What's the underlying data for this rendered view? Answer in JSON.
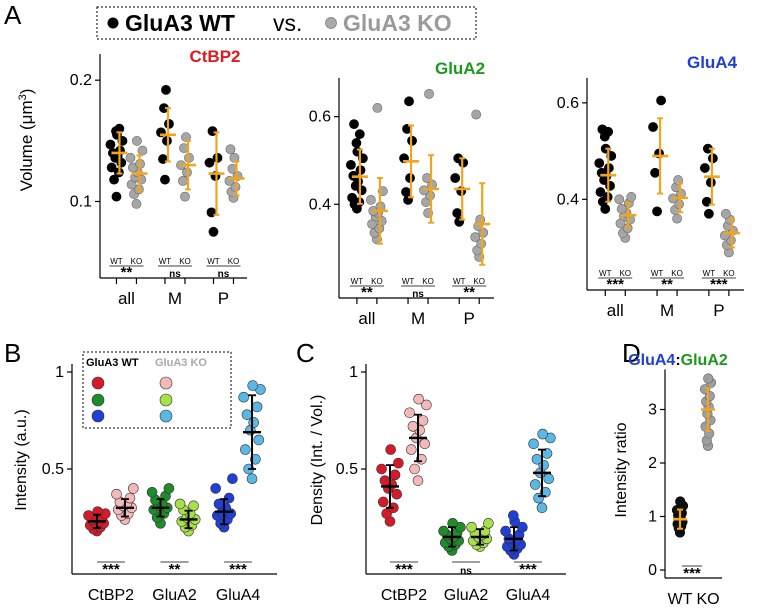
{
  "colors": {
    "wt": "#000000",
    "ko": "#9a9a9a",
    "mean": "#f0a51e",
    "ctbp2_title": "#e01b1b",
    "glua2_title": "#1a9a1a",
    "glua4_title": "#1f3fd6",
    "ratio_glua4": "#1f3fd6",
    "ratio_glua2": "#1a9a1a",
    "ctbp2_wt": "#d61a2a",
    "ctbp2_ko": "#f4b8b8",
    "glua2_wt": "#1e8c2a",
    "glua2_ko": "#a8e04a",
    "glua4_wt": "#1f3fd6",
    "glua4_ko": "#5ab8e6"
  },
  "legend_top": {
    "wt": "GluA3 WT",
    "vs": "vs.",
    "ko": "GluA3 KO"
  },
  "panel_labels": {
    "A": "A",
    "B": "B",
    "C": "C",
    "D": "D"
  },
  "panelA": {
    "ylabel": "Volume (μm",
    "ylabel_sup": "3",
    "ylabel_close": ")",
    "wt_label": "WT",
    "ko_label": "KO",
    "groups": [
      "all",
      "M",
      "P"
    ],
    "plots": [
      {
        "title": "CtBP2",
        "title_color_key": "ctbp2_title",
        "yticks": [
          "0.1",
          "0.2"
        ],
        "sig": [
          "**",
          "ns",
          "ns"
        ],
        "series": [
          {
            "group": "all",
            "geno": "WT",
            "mean": 0.14,
            "sd": 0.017,
            "points": [
              0.104,
              0.118,
              0.124,
              0.128,
              0.132,
              0.136,
              0.137,
              0.14,
              0.142,
              0.147,
              0.15,
              0.155,
              0.158,
              0.16
            ]
          },
          {
            "group": "all",
            "geno": "KO",
            "mean": 0.123,
            "sd": 0.015,
            "points": [
              0.098,
              0.106,
              0.11,
              0.114,
              0.118,
              0.12,
              0.124,
              0.128,
              0.131,
              0.136,
              0.142,
              0.15
            ]
          },
          {
            "group": "M",
            "geno": "WT",
            "mean": 0.155,
            "sd": 0.022,
            "points": [
              0.118,
              0.135,
              0.15,
              0.157,
              0.164,
              0.177,
              0.192
            ]
          },
          {
            "group": "M",
            "geno": "KO",
            "mean": 0.13,
            "sd": 0.02,
            "points": [
              0.104,
              0.117,
              0.124,
              0.13,
              0.136,
              0.144,
              0.153
            ]
          },
          {
            "group": "P",
            "geno": "WT",
            "mean": 0.123,
            "sd": 0.034,
            "points": [
              0.075,
              0.091,
              0.121,
              0.132,
              0.136,
              0.158
            ]
          },
          {
            "group": "P",
            "geno": "KO",
            "mean": 0.119,
            "sd": 0.014,
            "points": [
              0.103,
              0.108,
              0.112,
              0.117,
              0.121,
              0.127,
              0.136,
              0.143
            ]
          }
        ]
      },
      {
        "title": "GluA2",
        "title_color_key": "glua2_title",
        "yticks": [
          "0.4",
          "0.6"
        ],
        "sig": [
          "**",
          "ns",
          "**"
        ],
        "series": [
          {
            "group": "all",
            "geno": "WT",
            "mean": 0.463,
            "sd": 0.062,
            "points": [
              0.39,
              0.4,
              0.405,
              0.415,
              0.432,
              0.442,
              0.452,
              0.465,
              0.478,
              0.49,
              0.505,
              0.52,
              0.54,
              0.56,
              0.583
            ]
          },
          {
            "group": "all",
            "geno": "KO",
            "mean": 0.385,
            "sd": 0.075,
            "points": [
              0.32,
              0.335,
              0.345,
              0.355,
              0.362,
              0.372,
              0.38,
              0.385,
              0.395,
              0.41,
              0.43,
              0.62
            ]
          },
          {
            "group": "M",
            "geno": "WT",
            "mean": 0.498,
            "sd": 0.082,
            "points": [
              0.41,
              0.428,
              0.46,
              0.505,
              0.545,
              0.572,
              0.635
            ]
          },
          {
            "group": "M",
            "geno": "KO",
            "mean": 0.435,
            "sd": 0.077,
            "points": [
              0.38,
              0.405,
              0.42,
              0.432,
              0.445,
              0.46,
              0.652
            ]
          },
          {
            "group": "P",
            "geno": "WT",
            "mean": 0.435,
            "sd": 0.07,
            "points": [
              0.36,
              0.38,
              0.43,
              0.46,
              0.495,
              0.505
            ]
          },
          {
            "group": "P",
            "geno": "KO",
            "mean": 0.355,
            "sd": 0.093,
            "points": [
              0.28,
              0.295,
              0.31,
              0.325,
              0.335,
              0.35,
              0.365,
              0.605
            ]
          }
        ]
      },
      {
        "title": "GluA4",
        "title_color_key": "glua4_title",
        "yticks": [
          "0.4",
          "0.6"
        ],
        "sig": [
          "***",
          "**",
          "***"
        ],
        "series": [
          {
            "group": "all",
            "geno": "WT",
            "mean": 0.45,
            "sd": 0.055,
            "points": [
              0.38,
              0.395,
              0.405,
              0.415,
              0.428,
              0.44,
              0.448,
              0.455,
              0.465,
              0.475,
              0.49,
              0.505,
              0.53,
              0.54,
              0.545
            ]
          },
          {
            "group": "all",
            "geno": "KO",
            "mean": 0.367,
            "sd": 0.026,
            "points": [
              0.32,
              0.33,
              0.34,
              0.35,
              0.358,
              0.365,
              0.372,
              0.38,
              0.392,
              0.4,
              0.405
            ]
          },
          {
            "group": "M",
            "geno": "WT",
            "mean": 0.49,
            "sd": 0.078,
            "points": [
              0.375,
              0.455,
              0.495,
              0.55,
              0.605
            ]
          },
          {
            "group": "M",
            "geno": "KO",
            "mean": 0.403,
            "sd": 0.03,
            "points": [
              0.36,
              0.378,
              0.39,
              0.402,
              0.412,
              0.425,
              0.44
            ]
          },
          {
            "group": "P",
            "geno": "WT",
            "mean": 0.447,
            "sd": 0.058,
            "points": [
              0.37,
              0.395,
              0.435,
              0.465,
              0.485,
              0.505
            ]
          },
          {
            "group": "P",
            "geno": "KO",
            "mean": 0.33,
            "sd": 0.03,
            "points": [
              0.29,
              0.305,
              0.315,
              0.325,
              0.335,
              0.345,
              0.358,
              0.37
            ]
          }
        ]
      }
    ]
  },
  "panelB": {
    "ylabel": "Intensity (a.u.)",
    "yticks": [
      "0.5",
      "1"
    ],
    "categories": [
      "CtBP2",
      "GluA2",
      "GluA4"
    ],
    "legend": {
      "wt": "GluA3 WT",
      "ko": "GluA3 KO"
    },
    "sig": [
      "***",
      "**",
      "***"
    ],
    "series": [
      {
        "cat": "CtBP2",
        "geno": "WT",
        "color_key": "ctbp2_wt",
        "mean": 0.23,
        "sd": 0.035,
        "points": [
          0.18,
          0.19,
          0.2,
          0.21,
          0.22,
          0.22,
          0.23,
          0.24,
          0.25,
          0.26,
          0.27,
          0.28
        ]
      },
      {
        "cat": "CtBP2",
        "geno": "KO",
        "color_key": "ctbp2_ko",
        "mean": 0.3,
        "sd": 0.045,
        "points": [
          0.24,
          0.26,
          0.27,
          0.29,
          0.3,
          0.31,
          0.32,
          0.33,
          0.35,
          0.37,
          0.4
        ]
      },
      {
        "cat": "GluA2",
        "geno": "WT",
        "color_key": "glua2_wt",
        "mean": 0.3,
        "sd": 0.045,
        "points": [
          0.22,
          0.25,
          0.27,
          0.29,
          0.3,
          0.31,
          0.32,
          0.34,
          0.36,
          0.38,
          0.4
        ]
      },
      {
        "cat": "GluA2",
        "geno": "KO",
        "color_key": "glua2_ko",
        "mean": 0.24,
        "sd": 0.045,
        "points": [
          0.18,
          0.2,
          0.21,
          0.23,
          0.24,
          0.25,
          0.27,
          0.29,
          0.31,
          0.32
        ]
      },
      {
        "cat": "GluA4",
        "geno": "WT",
        "color_key": "glua4_wt",
        "mean": 0.28,
        "sd": 0.065,
        "points": [
          0.2,
          0.22,
          0.24,
          0.26,
          0.27,
          0.28,
          0.3,
          0.32,
          0.35,
          0.4,
          0.45
        ]
      },
      {
        "cat": "GluA4",
        "geno": "KO",
        "color_key": "glua4_ko",
        "mean": 0.69,
        "sd": 0.19,
        "points": [
          0.45,
          0.5,
          0.55,
          0.6,
          0.65,
          0.7,
          0.74,
          0.78,
          0.82,
          0.87,
          0.91,
          0.93
        ]
      }
    ]
  },
  "panelC": {
    "ylabel": "Density (Int. / Vol.)",
    "yticks": [
      "0.5",
      "1"
    ],
    "categories": [
      "CtBP2",
      "GluA2",
      "GluA4"
    ],
    "sig": [
      "***",
      "ns",
      "***"
    ],
    "series": [
      {
        "cat": "CtBP2",
        "geno": "WT",
        "color_key": "ctbp2_wt",
        "mean": 0.41,
        "sd": 0.11,
        "points": [
          0.23,
          0.27,
          0.3,
          0.33,
          0.37,
          0.4,
          0.42,
          0.44,
          0.47,
          0.5,
          0.53,
          0.6
        ]
      },
      {
        "cat": "CtBP2",
        "geno": "KO",
        "color_key": "ctbp2_ko",
        "mean": 0.66,
        "sd": 0.12,
        "points": [
          0.44,
          0.5,
          0.55,
          0.6,
          0.63,
          0.66,
          0.7,
          0.72,
          0.75,
          0.79,
          0.83,
          0.86
        ]
      },
      {
        "cat": "GluA2",
        "geno": "WT",
        "color_key": "glua2_wt",
        "mean": 0.15,
        "sd": 0.05,
        "points": [
          0.08,
          0.1,
          0.11,
          0.12,
          0.13,
          0.14,
          0.15,
          0.16,
          0.17,
          0.18,
          0.2,
          0.22
        ]
      },
      {
        "cat": "GluA2",
        "geno": "KO",
        "color_key": "glua2_ko",
        "mean": 0.15,
        "sd": 0.04,
        "points": [
          0.1,
          0.11,
          0.12,
          0.13,
          0.14,
          0.15,
          0.16,
          0.17,
          0.18,
          0.2,
          0.22
        ]
      },
      {
        "cat": "GluA4",
        "geno": "WT",
        "color_key": "glua4_wt",
        "mean": 0.14,
        "sd": 0.06,
        "points": [
          0.06,
          0.08,
          0.09,
          0.1,
          0.11,
          0.12,
          0.13,
          0.14,
          0.16,
          0.18,
          0.2,
          0.23,
          0.26
        ]
      },
      {
        "cat": "GluA4",
        "geno": "KO",
        "color_key": "glua4_ko",
        "mean": 0.48,
        "sd": 0.12,
        "points": [
          0.3,
          0.35,
          0.38,
          0.42,
          0.45,
          0.48,
          0.52,
          0.55,
          0.58,
          0.63,
          0.66,
          0.68
        ]
      }
    ]
  },
  "panelD": {
    "ylabel": "Intensity ratio",
    "title_a": "GluA4",
    "title_sep": ":",
    "title_b": "GluA2",
    "yticks": [
      "0",
      "1",
      "2",
      "3"
    ],
    "categories": [
      "WT",
      "KO"
    ],
    "sig": "***",
    "series": [
      {
        "cat": "WT",
        "geno": "WT",
        "color_key": "wt",
        "mean": 0.95,
        "sd": 0.18,
        "points": [
          0.7,
          0.78,
          0.82,
          0.86,
          0.9,
          0.94,
          0.98,
          1.02,
          1.06,
          1.12,
          1.2,
          1.28
        ]
      },
      {
        "cat": "KO",
        "geno": "KO",
        "color_key": "ko",
        "mean": 3.0,
        "sd": 0.4,
        "points": [
          2.32,
          2.42,
          2.55,
          2.68,
          2.8,
          2.92,
          3.05,
          3.15,
          3.25,
          3.38,
          3.5,
          3.58
        ]
      }
    ]
  },
  "chart_data": [
    {
      "type": "scatter",
      "title": "CtBP2",
      "ylabel": "Volume (μm3)",
      "categories": [
        "all",
        "M",
        "P"
      ],
      "ylim": [
        0.06,
        0.21
      ],
      "series_ref": "panelA.plots.0.series"
    },
    {
      "type": "scatter",
      "title": "GluA2",
      "ylabel": "Volume (μm3)",
      "categories": [
        "all",
        "M",
        "P"
      ],
      "ylim": [
        0.25,
        0.66
      ],
      "series_ref": "panelA.plots.1.series"
    },
    {
      "type": "scatter",
      "title": "GluA4",
      "ylabel": "Volume (μm3)",
      "categories": [
        "all",
        "M",
        "P"
      ],
      "ylim": [
        0.27,
        0.63
      ],
      "series_ref": "panelA.plots.2.series"
    },
    {
      "type": "scatter",
      "title": "",
      "ylabel": "Intensity (a.u.)",
      "categories": [
        "CtBP2",
        "GluA2",
        "GluA4"
      ],
      "ylim": [
        0,
        1
      ],
      "series_ref": "panelB.series"
    },
    {
      "type": "scatter",
      "title": "",
      "ylabel": "Density (Int. / Vol.)",
      "categories": [
        "CtBP2",
        "GluA2",
        "GluA4"
      ],
      "ylim": [
        0,
        1
      ],
      "series_ref": "panelC.series"
    },
    {
      "type": "scatter",
      "title": "GluA4:GluA2",
      "ylabel": "Intensity ratio",
      "categories": [
        "WT",
        "KO"
      ],
      "ylim": [
        0,
        3.8
      ],
      "series_ref": "panelD.series"
    }
  ]
}
